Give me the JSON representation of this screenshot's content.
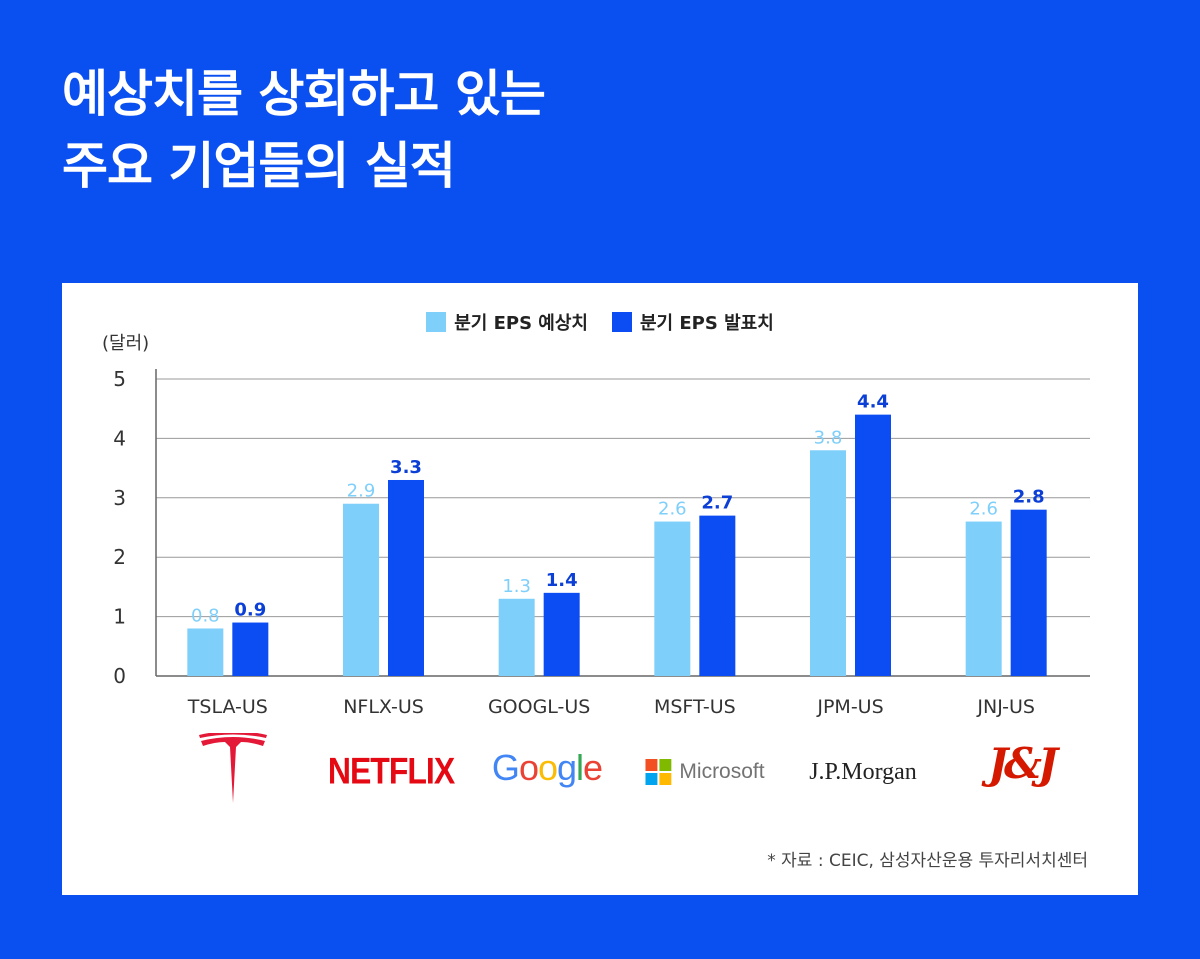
{
  "title": {
    "line1": "예상치를 상회하고 있는",
    "line2": "주요 기업들의 실적"
  },
  "colors": {
    "background": "#0a4ff0",
    "estimate": "#7fcffb",
    "actual": "#0b4df2"
  },
  "chart_data": {
    "type": "bar",
    "ylabel": "(달러)",
    "ylim": [
      0,
      5
    ],
    "yticks": [
      "0",
      "1",
      "2",
      "3",
      "4",
      "5"
    ],
    "grid": true,
    "legend_position": "top-center",
    "categories": [
      "TSLA-US",
      "NFLX-US",
      "GOOGL-US",
      "MSFT-US",
      "JPM-US",
      "JNJ-US"
    ],
    "series": [
      {
        "name": "분기 EPS 예상치",
        "values": [
          0.8,
          2.9,
          1.3,
          2.6,
          3.8,
          2.6
        ],
        "labels": [
          "0.8",
          "2.9",
          "1.3",
          "2.6",
          "3.8",
          "2.6"
        ]
      },
      {
        "name": "분기 EPS 발표치",
        "values": [
          0.9,
          3.3,
          1.4,
          2.7,
          4.4,
          2.8
        ],
        "labels": [
          "0.9",
          "3.3",
          "1.4",
          "2.7",
          "4.4",
          "2.8"
        ]
      }
    ]
  },
  "logos": {
    "tesla": "tesla-logo",
    "netflix": "NETFLIX",
    "google": [
      "G",
      "o",
      "o",
      "g",
      "l",
      "e"
    ],
    "google_colors": [
      "#4285F4",
      "#EA4335",
      "#FBBC05",
      "#4285F4",
      "#34A853",
      "#EA4335"
    ],
    "microsoft": "Microsoft",
    "microsoft_colors": [
      "#F25022",
      "#7FBA00",
      "#00A4EF",
      "#FFB900"
    ],
    "jpmorgan": "J.P.Morgan",
    "jnj": "J&J"
  },
  "source": "* 자료 : CEIC, 삼성자산운용 투자리서치센터"
}
